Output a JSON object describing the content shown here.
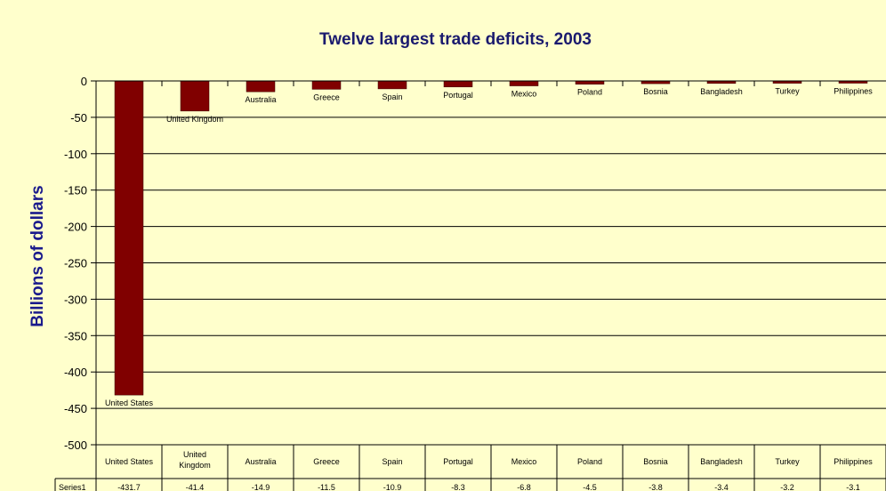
{
  "chart_data": {
    "type": "bar",
    "title": "Twelve largest trade deficits, 2003",
    "ylabel": "Billions of dollars",
    "xlabel": "",
    "ylim": [
      -500,
      0
    ],
    "yticks": [
      0,
      -50,
      -100,
      -150,
      -200,
      -250,
      -300,
      -350,
      -400,
      -450,
      -500
    ],
    "grid": true,
    "legend": "none",
    "bar_color": "#800000",
    "background": "#FFFFCC",
    "categories": [
      "United States",
      "United Kingdom",
      "Australia",
      "Greece",
      "Spain",
      "Portugal",
      "Mexico",
      "Poland",
      "Bosnia",
      "Bangladesh",
      "Turkey",
      "Philippines"
    ],
    "series": [
      {
        "name": "Series1",
        "values": [
          -431.7,
          -41.4,
          -14.9,
          -11.5,
          -10.9,
          -8.3,
          -6.8,
          -4.5,
          -3.8,
          -3.4,
          -3.2,
          -3.1
        ]
      }
    ],
    "table": {
      "series_label": "Series1",
      "headers": [
        "United States",
        "United Kingdom",
        "Australia",
        "Greece",
        "Spain",
        "Portugal",
        "Mexico",
        "Poland",
        "Bosnia",
        "Bangladesh",
        "Turkey",
        "Philippines"
      ],
      "values": [
        "-431.7",
        "-41.4",
        "-14.9",
        "-11.5",
        "-10.9",
        "-8.3",
        "-6.8",
        "-4.5",
        "-3.8",
        "-3.4",
        "-3.2",
        "-3.1"
      ]
    }
  }
}
